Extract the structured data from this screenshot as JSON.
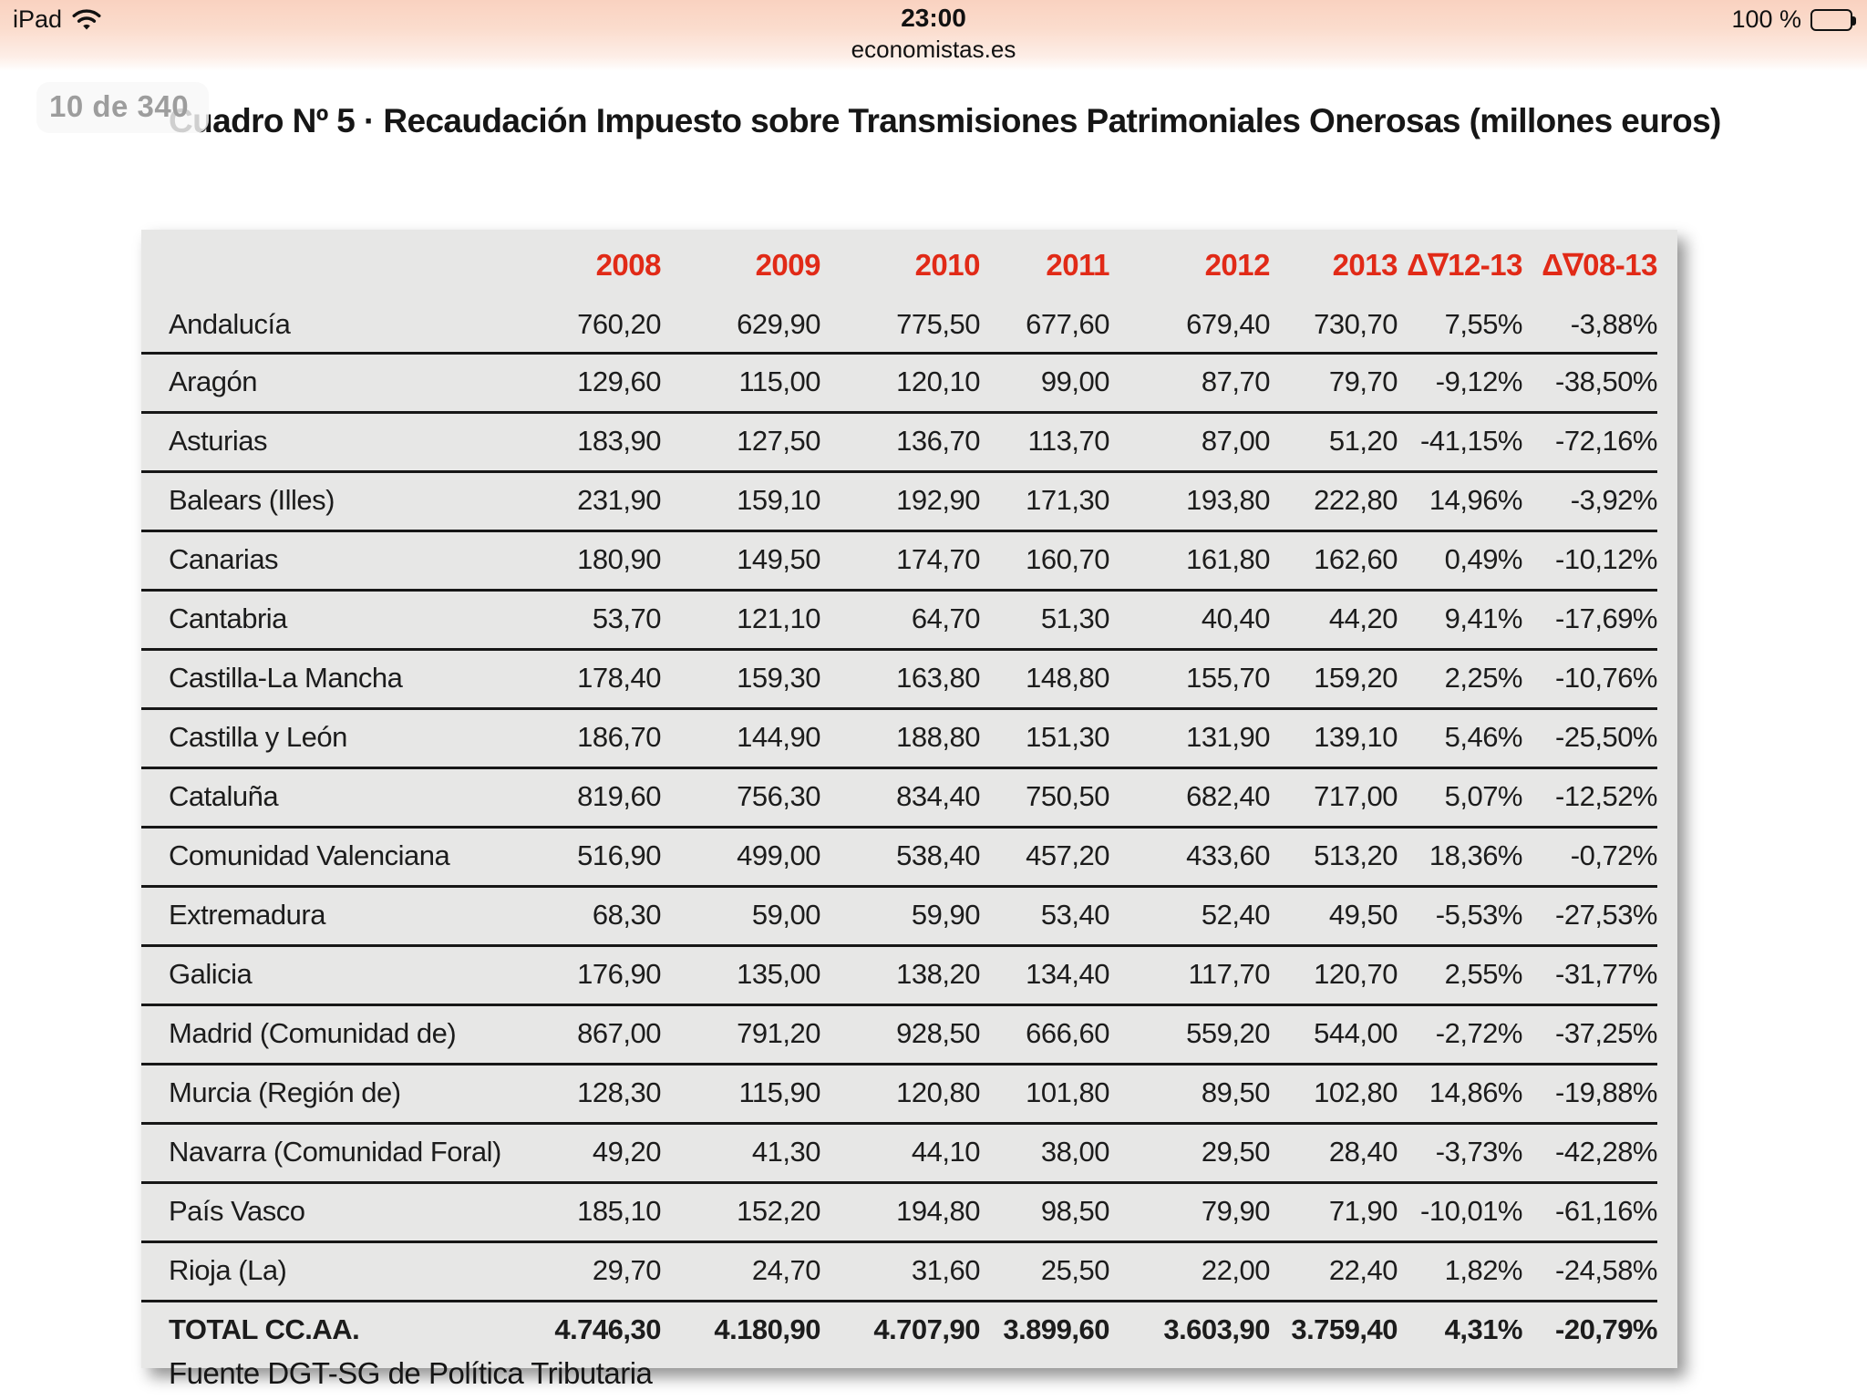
{
  "status_bar": {
    "device": "iPad",
    "time": "23:00",
    "site": "economistas.es",
    "battery": "100 %"
  },
  "page_badge": "10 de 340",
  "title": "Cuadro Nº 5 · Recaudación Impuesto sobre Transmisiones Patrimoniales Onerosas (millones euros)",
  "footer": "Fuente DGT-SG de Política Tributaria",
  "colors": {
    "header_red": "#e12a17",
    "table_bg": "#e7e7e6",
    "statusbar_peach": "#f9d2c0"
  },
  "chart_data": {
    "type": "table",
    "columns": [
      "",
      "2008",
      "2009",
      "2010",
      "2011",
      "2012",
      "2013",
      "Δ∇12-13",
      "Δ∇08-13"
    ],
    "rows": [
      [
        "Andalucía",
        "760,20",
        "629,90",
        "775,50",
        "677,60",
        "679,40",
        "730,70",
        "7,55%",
        "-3,88%"
      ],
      [
        "Aragón",
        "129,60",
        "115,00",
        "120,10",
        "99,00",
        "87,70",
        "79,70",
        "-9,12%",
        "-38,50%"
      ],
      [
        "Asturias",
        "183,90",
        "127,50",
        "136,70",
        "113,70",
        "87,00",
        "51,20",
        "-41,15%",
        "-72,16%"
      ],
      [
        "Balears (Illes)",
        "231,90",
        "159,10",
        "192,90",
        "171,30",
        "193,80",
        "222,80",
        "14,96%",
        "-3,92%"
      ],
      [
        "Canarias",
        "180,90",
        "149,50",
        "174,70",
        "160,70",
        "161,80",
        "162,60",
        "0,49%",
        "-10,12%"
      ],
      [
        "Cantabria",
        "53,70",
        "121,10",
        "64,70",
        "51,30",
        "40,40",
        "44,20",
        "9,41%",
        "-17,69%"
      ],
      [
        "Castilla-La Mancha",
        "178,40",
        "159,30",
        "163,80",
        "148,80",
        "155,70",
        "159,20",
        "2,25%",
        "-10,76%"
      ],
      [
        "Castilla y León",
        "186,70",
        "144,90",
        "188,80",
        "151,30",
        "131,90",
        "139,10",
        "5,46%",
        "-25,50%"
      ],
      [
        "Cataluña",
        "819,60",
        "756,30",
        "834,40",
        "750,50",
        "682,40",
        "717,00",
        "5,07%",
        "-12,52%"
      ],
      [
        "Comunidad Valenciana",
        "516,90",
        "499,00",
        "538,40",
        "457,20",
        "433,60",
        "513,20",
        "18,36%",
        "-0,72%"
      ],
      [
        "Extremadura",
        "68,30",
        "59,00",
        "59,90",
        "53,40",
        "52,40",
        "49,50",
        "-5,53%",
        "-27,53%"
      ],
      [
        "Galicia",
        "176,90",
        "135,00",
        "138,20",
        "134,40",
        "117,70",
        "120,70",
        "2,55%",
        "-31,77%"
      ],
      [
        "Madrid (Comunidad de)",
        "867,00",
        "791,20",
        "928,50",
        "666,60",
        "559,20",
        "544,00",
        "-2,72%",
        "-37,25%"
      ],
      [
        "Murcia (Región de)",
        "128,30",
        "115,90",
        "120,80",
        "101,80",
        "89,50",
        "102,80",
        "14,86%",
        "-19,88%"
      ],
      [
        "Navarra (Comunidad Foral)",
        "49,20",
        "41,30",
        "44,10",
        "38,00",
        "29,50",
        "28,40",
        "-3,73%",
        "-42,28%"
      ],
      [
        "País Vasco",
        "185,10",
        "152,20",
        "194,80",
        "98,50",
        "79,90",
        "71,90",
        "-10,01%",
        "-61,16%"
      ],
      [
        "Rioja (La)",
        "29,70",
        "24,70",
        "31,60",
        "25,50",
        "22,00",
        "22,40",
        "1,82%",
        "-24,58%"
      ],
      [
        "TOTAL CC.AA.",
        "4.746,30",
        "4.180,90",
        "4.707,90",
        "3.899,60",
        "3.603,90",
        "3.759,40",
        "4,31%",
        "-20,79%"
      ]
    ]
  }
}
